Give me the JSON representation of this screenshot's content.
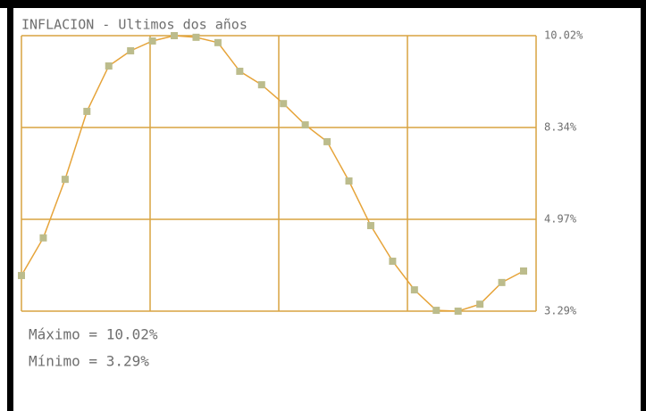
{
  "chart_data": {
    "type": "line",
    "title": "INFLACION - Ultimos dos años",
    "values": [
      4.16,
      5.08,
      6.51,
      8.17,
      9.28,
      9.65,
      9.89,
      10.02,
      9.98,
      9.85,
      9.15,
      8.82,
      8.36,
      7.84,
      7.43,
      6.47,
      5.38,
      4.51,
      3.81,
      3.31,
      3.29,
      3.46,
      3.99,
      4.27
    ],
    "color": "#e6a43a",
    "marker_color": "#bcbc8c",
    "ylim": [
      3.29,
      10.02
    ],
    "yticks": [
      {
        "value": 3.29,
        "label": "3.29%"
      },
      {
        "value": 4.97,
        "label": "4.97%"
      },
      {
        "value": 8.34,
        "label": "8.34%"
      },
      {
        "value": 10.02,
        "label": "10.02%"
      }
    ],
    "grid": true,
    "annotations": [
      "Máximo = 10.02%",
      "Mínimo = 3.29%"
    ]
  }
}
